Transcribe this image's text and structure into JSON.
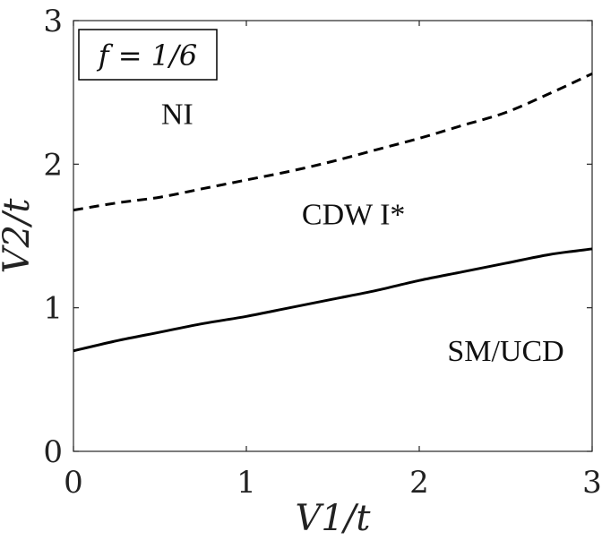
{
  "chart_data": {
    "type": "line",
    "title": "",
    "annotation": "f = 1/6",
    "xlabel": "V1/t",
    "ylabel": "V2/t",
    "xlim": [
      0,
      3
    ],
    "ylim": [
      0,
      3
    ],
    "x_ticks": [
      "0",
      "1",
      "2",
      "3"
    ],
    "y_ticks": [
      "0",
      "1",
      "2",
      "3"
    ],
    "grid": false,
    "colors": {
      "axis": "#262626",
      "line": "#000000"
    },
    "series": [
      {
        "style": "solid",
        "x": [
          0,
          0.25,
          0.5,
          0.75,
          1.0,
          1.25,
          1.5,
          1.75,
          2.0,
          2.25,
          2.5,
          2.75,
          3.0
        ],
        "y": [
          0.7,
          0.77,
          0.83,
          0.89,
          0.94,
          1.0,
          1.06,
          1.12,
          1.19,
          1.25,
          1.31,
          1.37,
          1.41
        ]
      },
      {
        "style": "dashed",
        "x": [
          0,
          0.25,
          0.5,
          0.75,
          1.0,
          1.25,
          1.5,
          1.75,
          2.0,
          2.25,
          2.5,
          2.75,
          3.0
        ],
        "y": [
          1.68,
          1.73,
          1.77,
          1.83,
          1.89,
          1.95,
          2.02,
          2.1,
          2.18,
          2.27,
          2.36,
          2.49,
          2.63
        ]
      }
    ],
    "regions": [
      {
        "label": "NI",
        "x": 0.6,
        "y": 2.28
      },
      {
        "label": "CDW I*",
        "x": 1.62,
        "y": 1.58
      },
      {
        "label": "SM/UCD",
        "x": 2.5,
        "y": 0.63
      }
    ]
  }
}
